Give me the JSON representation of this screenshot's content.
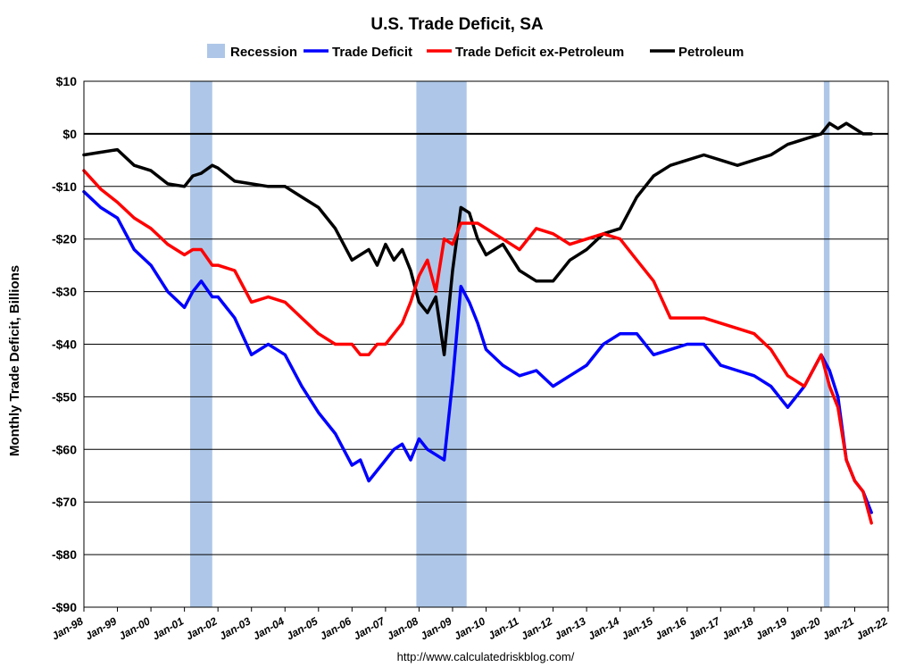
{
  "chart_data": {
    "type": "line",
    "title": "U.S. Trade Deficit, SA",
    "ylabel": "Monthly Trade Deficit, Billions",
    "xlabel": "",
    "source": "http://www.calculatedriskblog.com/",
    "ylim": [
      -90,
      10
    ],
    "yticks": [
      10,
      0,
      -10,
      -20,
      -30,
      -40,
      -50,
      -60,
      -70,
      -80,
      -90
    ],
    "ytick_labels": [
      "$10",
      "$0",
      "-$10",
      "-$20",
      "-$30",
      "-$40",
      "-$50",
      "-$60",
      "-$70",
      "-$80",
      "-$90"
    ],
    "xlim": [
      1998.0,
      2022.0
    ],
    "xtick_labels": [
      "Jan-98",
      "Jan-99",
      "Jan-00",
      "Jan-01",
      "Jan-02",
      "Jan-03",
      "Jan-04",
      "Jan-05",
      "Jan-06",
      "Jan-07",
      "Jan-08",
      "Jan-09",
      "Jan-10",
      "Jan-11",
      "Jan-12",
      "Jan-13",
      "Jan-14",
      "Jan-15",
      "Jan-16",
      "Jan-17",
      "Jan-18",
      "Jan-19",
      "Jan-20",
      "Jan-21",
      "Jan-22"
    ],
    "grid": true,
    "legend_position": "top",
    "legend": [
      {
        "name": "Recession",
        "color": "#aec7e8",
        "kind": "area"
      },
      {
        "name": "Trade Deficit",
        "color": "#0000ff",
        "kind": "line"
      },
      {
        "name": "Trade Deficit ex-Petroleum",
        "color": "#ff0000",
        "kind": "line"
      },
      {
        "name": "Petroleum",
        "color": "#000000",
        "kind": "line"
      }
    ],
    "recessions": [
      {
        "start": 2001.17,
        "end": 2001.83
      },
      {
        "start": 2007.92,
        "end": 2009.42
      },
      {
        "start": 2020.08,
        "end": 2020.25
      }
    ],
    "series": [
      {
        "name": "Petroleum",
        "color": "#000000",
        "x": [
          1998.0,
          1998.5,
          1999.0,
          1999.5,
          2000.0,
          2000.5,
          2001.0,
          2001.25,
          2001.5,
          2001.83,
          2002.0,
          2002.5,
          2003.0,
          2003.5,
          2004.0,
          2004.5,
          2005.0,
          2005.5,
          2006.0,
          2006.25,
          2006.5,
          2006.75,
          2007.0,
          2007.25,
          2007.5,
          2007.75,
          2008.0,
          2008.25,
          2008.5,
          2008.75,
          2009.0,
          2009.25,
          2009.5,
          2009.75,
          2010.0,
          2010.5,
          2011.0,
          2011.5,
          2012.0,
          2012.5,
          2013.0,
          2013.5,
          2014.0,
          2014.5,
          2015.0,
          2015.5,
          2016.0,
          2016.5,
          2017.0,
          2017.5,
          2018.0,
          2018.5,
          2019.0,
          2019.5,
          2020.0,
          2020.25,
          2020.5,
          2020.75,
          2021.0,
          2021.25,
          2021.5
        ],
        "values": [
          -4,
          -3.5,
          -3,
          -6,
          -7,
          -9.5,
          -10,
          -8,
          -7.5,
          -6,
          -6.5,
          -9,
          -9.5,
          -10,
          -10,
          -12,
          -14,
          -18,
          -24,
          -23,
          -22,
          -25,
          -21,
          -24,
          -22,
          -26,
          -32,
          -34,
          -31,
          -42,
          -26,
          -14,
          -15,
          -20,
          -23,
          -21,
          -26,
          -28,
          -28,
          -24,
          -22,
          -19,
          -18,
          -12,
          -8,
          -6,
          -5,
          -4,
          -5,
          -6,
          -5,
          -4,
          -2,
          -1,
          0,
          2,
          1,
          2,
          1,
          0,
          0
        ]
      },
      {
        "name": "Trade Deficit",
        "color": "#0000ff",
        "x": [
          1998.0,
          1998.5,
          1999.0,
          1999.5,
          2000.0,
          2000.5,
          2001.0,
          2001.25,
          2001.5,
          2001.83,
          2002.0,
          2002.5,
          2003.0,
          2003.5,
          2004.0,
          2004.5,
          2005.0,
          2005.5,
          2006.0,
          2006.25,
          2006.5,
          2006.75,
          2007.0,
          2007.25,
          2007.5,
          2007.75,
          2008.0,
          2008.25,
          2008.5,
          2008.75,
          2009.0,
          2009.25,
          2009.5,
          2009.75,
          2010.0,
          2010.5,
          2011.0,
          2011.5,
          2012.0,
          2012.5,
          2013.0,
          2013.5,
          2014.0,
          2014.5,
          2015.0,
          2015.5,
          2016.0,
          2016.5,
          2017.0,
          2017.5,
          2018.0,
          2018.5,
          2019.0,
          2019.5,
          2020.0,
          2020.25,
          2020.5,
          2020.75,
          2021.0,
          2021.25,
          2021.5
        ],
        "values": [
          -11,
          -14,
          -16,
          -22,
          -25,
          -30,
          -33,
          -30,
          -28,
          -31,
          -31,
          -35,
          -42,
          -40,
          -42,
          -48,
          -53,
          -57,
          -63,
          -62,
          -66,
          -64,
          -62,
          -60,
          -59,
          -62,
          -58,
          -60,
          -61,
          -62,
          -47,
          -29,
          -32,
          -36,
          -41,
          -44,
          -46,
          -45,
          -48,
          -46,
          -44,
          -40,
          -38,
          -38,
          -42,
          -41,
          -40,
          -40,
          -44,
          -45,
          -46,
          -48,
          -52,
          -48,
          -42,
          -45,
          -50,
          -62,
          -66,
          -68,
          -72
        ]
      },
      {
        "name": "Trade Deficit ex-Petroleum",
        "color": "#ff0000",
        "x": [
          1998.0,
          1998.5,
          1999.0,
          1999.5,
          2000.0,
          2000.5,
          2001.0,
          2001.25,
          2001.5,
          2001.83,
          2002.0,
          2002.5,
          2003.0,
          2003.5,
          2004.0,
          2004.5,
          2005.0,
          2005.5,
          2006.0,
          2006.25,
          2006.5,
          2006.75,
          2007.0,
          2007.25,
          2007.5,
          2007.75,
          2008.0,
          2008.25,
          2008.5,
          2008.75,
          2009.0,
          2009.25,
          2009.5,
          2009.75,
          2010.0,
          2010.5,
          2011.0,
          2011.5,
          2012.0,
          2012.5,
          2013.0,
          2013.5,
          2014.0,
          2014.5,
          2015.0,
          2015.5,
          2016.0,
          2016.5,
          2017.0,
          2017.5,
          2018.0,
          2018.5,
          2019.0,
          2019.5,
          2020.0,
          2020.25,
          2020.5,
          2020.75,
          2021.0,
          2021.25,
          2021.5
        ],
        "values": [
          -7,
          -10.5,
          -13,
          -16,
          -18,
          -21,
          -23,
          -22,
          -22,
          -25,
          -25,
          -26,
          -32,
          -31,
          -32,
          -35,
          -38,
          -40,
          -40,
          -42,
          -42,
          -40,
          -40,
          -38,
          -36,
          -32,
          -27,
          -24,
          -30,
          -20,
          -21,
          -17,
          -17,
          -17,
          -18,
          -20,
          -22,
          -18,
          -19,
          -21,
          -20,
          -19,
          -20,
          -24,
          -28,
          -35,
          -35,
          -35,
          -36,
          -37,
          -38,
          -41,
          -46,
          -48,
          -42,
          -48,
          -52,
          -62,
          -66,
          -68,
          -74
        ]
      }
    ]
  }
}
